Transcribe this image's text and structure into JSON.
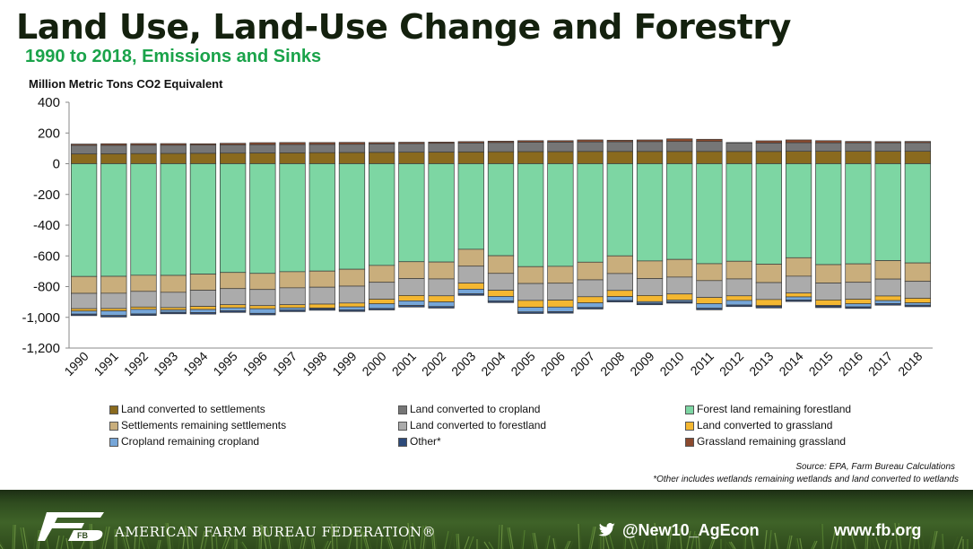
{
  "header": {
    "title": "Land Use, Land-Use Change and Forestry",
    "subtitle": "1990 to 2018, Emissions and Sinks",
    "units_label": "Million Metric Tons CO2 Equivalent"
  },
  "footnotes": {
    "source": "Source: EPA, Farm Bureau Calculations",
    "note": "*Other includes wetlands remaining wetlands and land converted to wetlands"
  },
  "footer": {
    "org_name": "AMERICAN FARM BUREAU FEDERATION®",
    "twitter_handle": "@New10_AgEcon",
    "website": "www.fb.org",
    "logo_text": "FB",
    "logo_icon": "fb-logo-icon",
    "twitter_icon": "twitter-bird-icon"
  },
  "chart_data": {
    "type": "bar",
    "stacked": true,
    "title": "",
    "xlabel": "",
    "ylabel": "Million Metric Tons CO2 Equivalent",
    "ylim": [
      -1200,
      400
    ],
    "yticks": [
      400,
      200,
      0,
      -200,
      -400,
      -600,
      -800,
      -1000,
      -1200
    ],
    "ytick_labels": [
      "400",
      "200",
      "0",
      "-200",
      "-400",
      "-600",
      "-800",
      "-1,000",
      "-1,200"
    ],
    "grid": false,
    "legend_position": "bottom",
    "categories": [
      "1990",
      "1991",
      "1992",
      "1993",
      "1994",
      "1995",
      "1996",
      "1997",
      "1998",
      "1999",
      "2000",
      "2001",
      "2002",
      "2003",
      "2004",
      "2005",
      "2006",
      "2007",
      "2008",
      "2009",
      "2010",
      "2011",
      "2012",
      "2013",
      "2014",
      "2015",
      "2016",
      "2017",
      "2018"
    ],
    "legend_order": [
      "Land converted to settlements",
      "Land converted to cropland",
      "Forest land remaining forestland",
      "Settlements remaining settlements",
      "Land converted to forestland",
      "Land converted to grassland",
      "Cropland remaining cropland",
      "Other*",
      "Grassland remaining grassland"
    ],
    "series": [
      {
        "name": "Land converted to settlements",
        "color": "#8a6a1e",
        "values": [
          64,
          65,
          66,
          67,
          68,
          69,
          70,
          71,
          72,
          73,
          74,
          75,
          76,
          77,
          78,
          79,
          79,
          80,
          80,
          80,
          80,
          80,
          80,
          80,
          81,
          81,
          81,
          81,
          81
        ]
      },
      {
        "name": "Land converted to cropland",
        "color": "#767676",
        "values": [
          56,
          55,
          55,
          54,
          54,
          54,
          54,
          54,
          54,
          54,
          55,
          56,
          57,
          58,
          60,
          61,
          62,
          62,
          63,
          64,
          65,
          65,
          56,
          55,
          56,
          55,
          55,
          55,
          56
        ]
      },
      {
        "name": "Grassland remaining grassland",
        "color": "#8b4a2e",
        "values": [
          8,
          10,
          10,
          10,
          8,
          10,
          13,
          13,
          12,
          12,
          9,
          9,
          8,
          9,
          9,
          10,
          9,
          13,
          10,
          11,
          17,
          14,
          2,
          14,
          18,
          14,
          9,
          8,
          8
        ]
      },
      {
        "name": "Forest land remaining forestland",
        "color": "#7dd6a3",
        "values": [
          -734,
          -733,
          -726,
          -727,
          -719,
          -708,
          -714,
          -703,
          -699,
          -687,
          -662,
          -638,
          -640,
          -557,
          -599,
          -670,
          -668,
          -641,
          -600,
          -633,
          -623,
          -651,
          -635,
          -654,
          -612,
          -657,
          -652,
          -631,
          -646
        ]
      },
      {
        "name": "Settlements remaining settlements",
        "color": "#c9ae7c",
        "values": [
          -110,
          -110,
          -105,
          -110,
          -105,
          -105,
          -105,
          -105,
          -105,
          -110,
          -110,
          -110,
          -110,
          -110,
          -115,
          -110,
          -110,
          -115,
          -115,
          -115,
          -115,
          -110,
          -115,
          -120,
          -120,
          -120,
          -120,
          -120,
          -120
        ]
      },
      {
        "name": "Land converted to forestland",
        "color": "#ababab",
        "values": [
          -100,
          -100,
          -102,
          -100,
          -105,
          -105,
          -105,
          -110,
          -110,
          -110,
          -110,
          -110,
          -110,
          -110,
          -110,
          -110,
          -110,
          -110,
          -110,
          -110,
          -110,
          -110,
          -110,
          -110,
          -110,
          -110,
          -110,
          -110,
          -110
        ]
      },
      {
        "name": "Land converted to grassland",
        "color": "#f4b731",
        "values": [
          -15,
          -15,
          -15,
          -15,
          -20,
          -20,
          -20,
          -20,
          -25,
          -25,
          -30,
          -35,
          -40,
          -40,
          -40,
          -45,
          -45,
          -40,
          -40,
          -40,
          -40,
          -40,
          -30,
          -40,
          -25,
          -35,
          -30,
          -30,
          -30
        ]
      },
      {
        "name": "Cropland remaining cropland",
        "color": "#76a6d8",
        "values": [
          -20,
          -30,
          -30,
          -15,
          -20,
          -20,
          -30,
          -15,
          -5,
          -20,
          -30,
          -30,
          -30,
          -30,
          -30,
          -30,
          -30,
          -30,
          -25,
          -10,
          -10,
          -30,
          -30,
          -5,
          -20,
          -5,
          -20,
          -20,
          -15
        ]
      },
      {
        "name": "Other*",
        "color": "#2d4a7a",
        "values": [
          -10,
          -10,
          -10,
          -10,
          -10,
          -10,
          -10,
          -10,
          -10,
          -10,
          -10,
          -10,
          -10,
          -10,
          -10,
          -10,
          -10,
          -10,
          -10,
          -10,
          -10,
          -10,
          -10,
          -10,
          -10,
          -10,
          -10,
          -10,
          -10
        ]
      }
    ]
  }
}
